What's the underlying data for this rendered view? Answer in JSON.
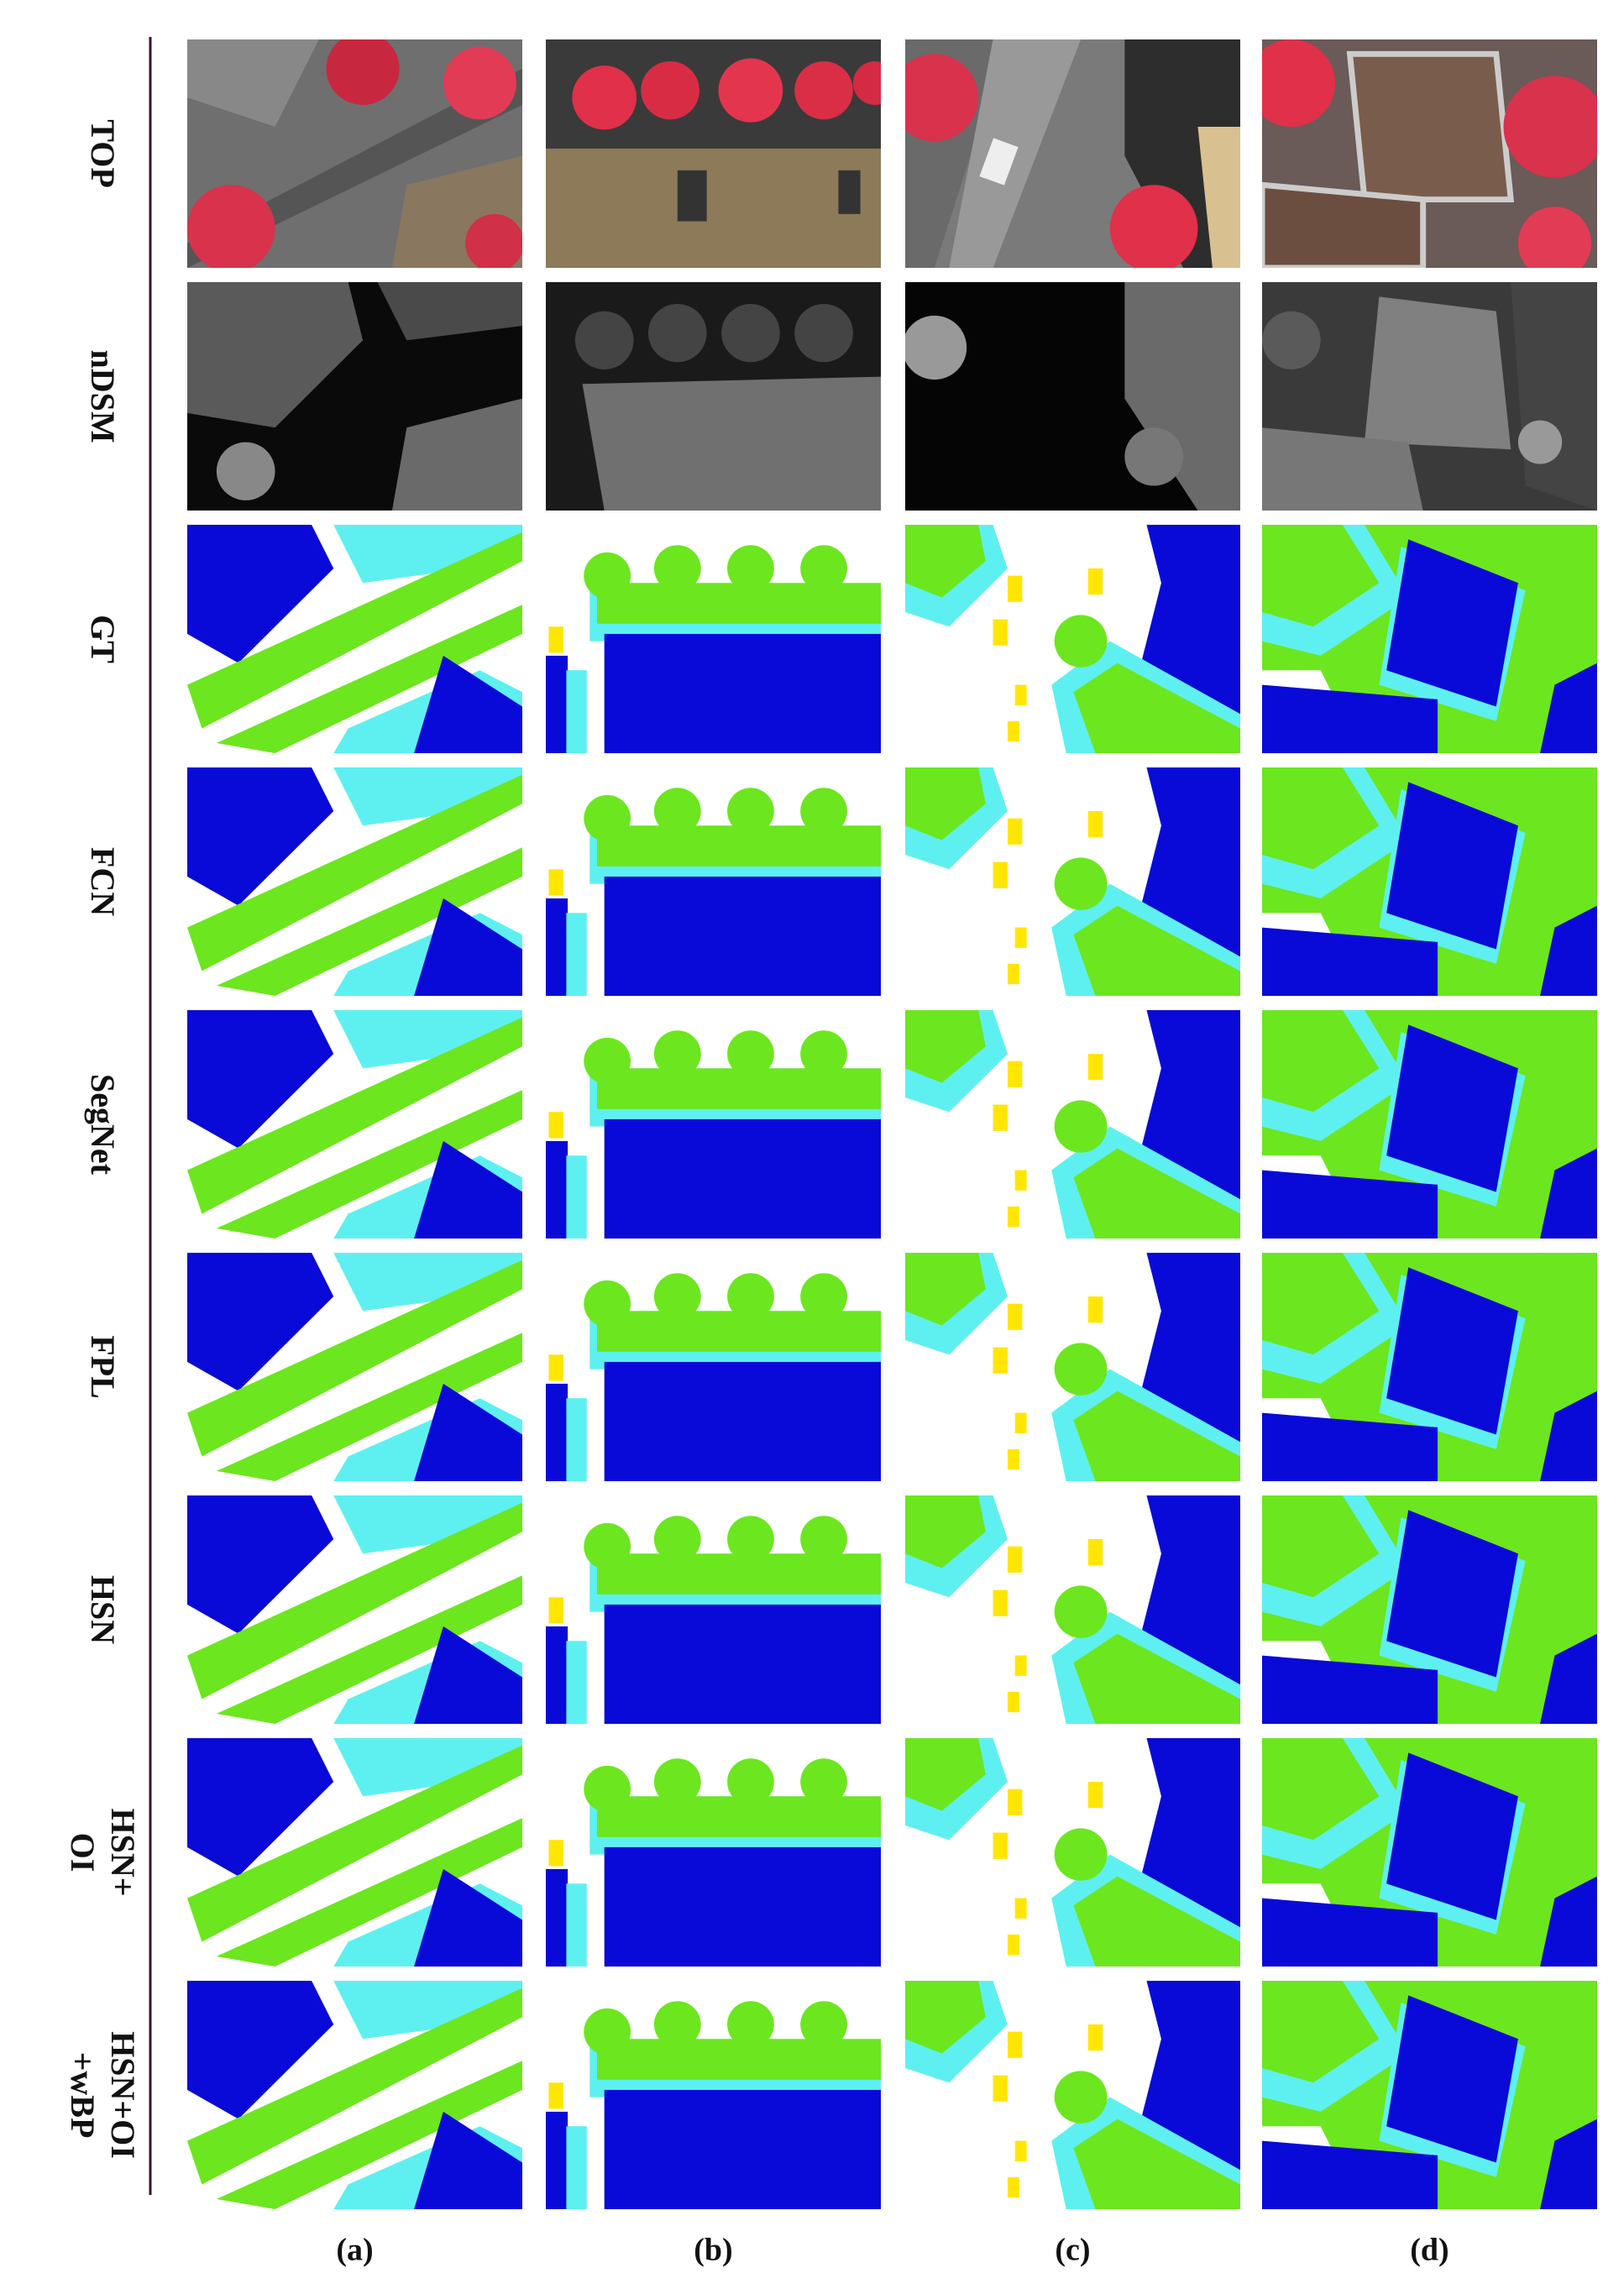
{
  "rows": [
    {
      "lines": [
        "TOP"
      ]
    },
    {
      "lines": [
        "nDSM"
      ]
    },
    {
      "lines": [
        "GT"
      ]
    },
    {
      "lines": [
        "FCN"
      ]
    },
    {
      "lines": [
        "SegNet"
      ]
    },
    {
      "lines": [
        "FPL"
      ]
    },
    {
      "lines": [
        "HSN"
      ]
    },
    {
      "lines": [
        "HSN+",
        "OI"
      ]
    },
    {
      "lines": [
        "HSN+OI",
        "+wBP"
      ]
    }
  ],
  "columns": [
    "(a)",
    "(b)",
    "(c)",
    "(d)"
  ]
}
